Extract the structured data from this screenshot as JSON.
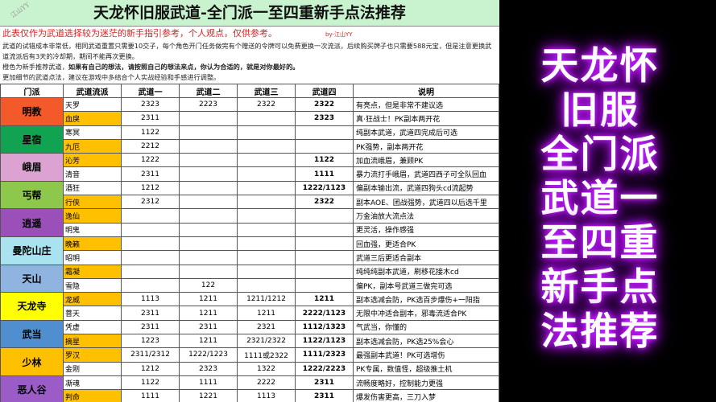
{
  "title": "天龙怀旧服武道-全门派一至四重新手点法推荐",
  "watermark": "江山YY",
  "notes": {
    "disclaimer": "此表仅作为武道选择较为迷茫的新手指引参考，个人观点，仅供参考。",
    "author": "by-江山YY",
    "line1": "武道的试错成本非常低，相同武道重置只需要10交子，每个角色开门任务做完有个赠送的令牌可以免费更换一次流派，后续购买牌子也只需要588元宝，但是注意更换武道流派后有3天的冷却期，期间不能再次更换。",
    "line2a": "橙色为新手推荐武道，",
    "line2b": "如果有自己的想法，请按照自己的想法来点，你认为合适的，就是对你最好的。",
    "line3": "更加细节的武道点法，建议在游戏中多结合个人实战经验和手感进行调整。"
  },
  "headers": [
    "门派",
    "武道流派",
    "武道一",
    "武道二",
    "武道三",
    "武道四",
    "说明"
  ],
  "sects": [
    {
      "name": "明教",
      "color": "#f4592a",
      "rows": [
        {
          "style": "天罗",
          "rec": false,
          "w": [
            "2323",
            "2223",
            "2322",
            "2322"
          ],
          "desc": "有亮点，但是非常不建议选"
        },
        {
          "style": "血戾",
          "rec": true,
          "w": [
            "2311",
            "",
            "",
            "2323"
          ],
          "desc": "真·狂战士！PK副本两开花"
        }
      ]
    },
    {
      "name": "星宿",
      "color": "#12a352",
      "rows": [
        {
          "style": "寒冥",
          "rec": false,
          "w": [
            "1122",
            "",
            "",
            ""
          ],
          "desc": "纯副本武道，武道四完成后可选"
        },
        {
          "style": "九厄",
          "rec": true,
          "w": [
            "2212",
            "",
            "",
            ""
          ],
          "desc": "PK强势，副本两开花"
        }
      ]
    },
    {
      "name": "峨眉",
      "color": "#dca2d2",
      "rows": [
        {
          "style": "沁芳",
          "rec": true,
          "w": [
            "1222",
            "",
            "",
            "1122"
          ],
          "desc": "加血流峨眉，兼顾PK"
        },
        {
          "style": "清音",
          "rec": false,
          "w": [
            "2311",
            "",
            "",
            "1111"
          ],
          "desc": "暴力流打手峨眉，武道四西子可全队回血"
        }
      ]
    },
    {
      "name": "丐帮",
      "color": "#8dc84c",
      "rows": [
        {
          "style": "酒狂",
          "rec": false,
          "w": [
            "1212",
            "",
            "",
            "1222/1123"
          ],
          "desc": "偏副本输出流，武道四狗头cd流起势"
        },
        {
          "style": "行侠",
          "rec": true,
          "w": [
            "2312",
            "",
            "",
            "2322"
          ],
          "desc": "副本AOE、团战强势，武道四以后选千里"
        }
      ]
    },
    {
      "name": "逍遥",
      "color": "#9b4fb9",
      "rows": [
        {
          "style": "逸仙",
          "rec": true,
          "w": [
            "",
            "",
            "",
            ""
          ],
          "desc": "万金油放大流点法"
        },
        {
          "style": "明鬼",
          "rec": false,
          "w": [
            "",
            "",
            "",
            ""
          ],
          "desc": "更灵活，操作感强"
        }
      ]
    },
    {
      "name": "曼陀山庄",
      "color": "#a9e3f0",
      "rows": [
        {
          "style": "晚籁",
          "rec": true,
          "w": [
            "",
            "",
            "",
            ""
          ],
          "desc": "回血强，更适合PK"
        },
        {
          "style": "昭明",
          "rec": false,
          "w": [
            "",
            "",
            "",
            ""
          ],
          "desc": "武道三后更适合副本"
        }
      ]
    },
    {
      "name": "天山",
      "color": "#8fb4df",
      "rows": [
        {
          "style": "霜凝",
          "rec": true,
          "w": [
            "",
            "",
            "",
            ""
          ],
          "desc": "纯纯纯副本武道，刷移花接木cd"
        },
        {
          "style": "雪隐",
          "rec": false,
          "w": [
            "",
            "122",
            "",
            ""
          ],
          "desc": "偏PK，副本号武道三做完可选"
        }
      ]
    },
    {
      "name": "天龙寺",
      "color": "#ffff00",
      "rows": [
        {
          "style": "龙威",
          "rec": true,
          "w": [
            "1113",
            "1211",
            "1211/1212",
            "1211"
          ],
          "desc": "副本选减会防，PK选百步爆伤+一阳指"
        },
        {
          "style": "菩天",
          "rec": false,
          "w": [
            "2311",
            "1211",
            "1211",
            "2222/1123"
          ],
          "desc": "无限中冲适合副本，邪毒流适合PK"
        }
      ]
    },
    {
      "name": "武当",
      "color": "#4f8fd0",
      "rows": [
        {
          "style": "凭虚",
          "rec": false,
          "w": [
            "2311",
            "2311",
            "2321",
            "1112/1323"
          ],
          "desc": "气武当，你懂的"
        },
        {
          "style": "摘星",
          "rec": true,
          "w": [
            "1223",
            "1211",
            "2321/2322",
            "1122/1123"
          ],
          "desc": "副本选减会防，PK选25%会心"
        }
      ]
    },
    {
      "name": "少林",
      "color": "#ffc000",
      "rows": [
        {
          "style": "罗汉",
          "rec": true,
          "w": [
            "2311/2312",
            "1222/1223",
            "1111或2322",
            "1111/2323"
          ],
          "desc": "最强副本武道！PK可选增伤"
        },
        {
          "style": "金刚",
          "rec": false,
          "w": [
            "1212",
            "2323",
            "1322",
            "1222/2223"
          ],
          "desc": "PK专属，数值怪，超级推土机"
        }
      ]
    },
    {
      "name": "恶人谷",
      "color": "#9b5cc8",
      "rows": [
        {
          "style": "凘魂",
          "rec": false,
          "w": [
            "1122",
            "1111",
            "2222",
            "2311"
          ],
          "desc": "流畅度略好，控制能力更强"
        },
        {
          "style": "判命",
          "rec": true,
          "w": [
            "1111",
            "1221",
            "1113",
            "2311"
          ],
          "desc": "爆发伤害更高，三刀入梦"
        }
      ]
    }
  ],
  "overlay": [
    "天龙怀旧服",
    "全门派",
    "武道一至四重",
    "新手点法推荐"
  ],
  "colors": {
    "recommended": "#ffc000",
    "title_bg": "#c9f2cf",
    "glow": "#c020ff"
  }
}
